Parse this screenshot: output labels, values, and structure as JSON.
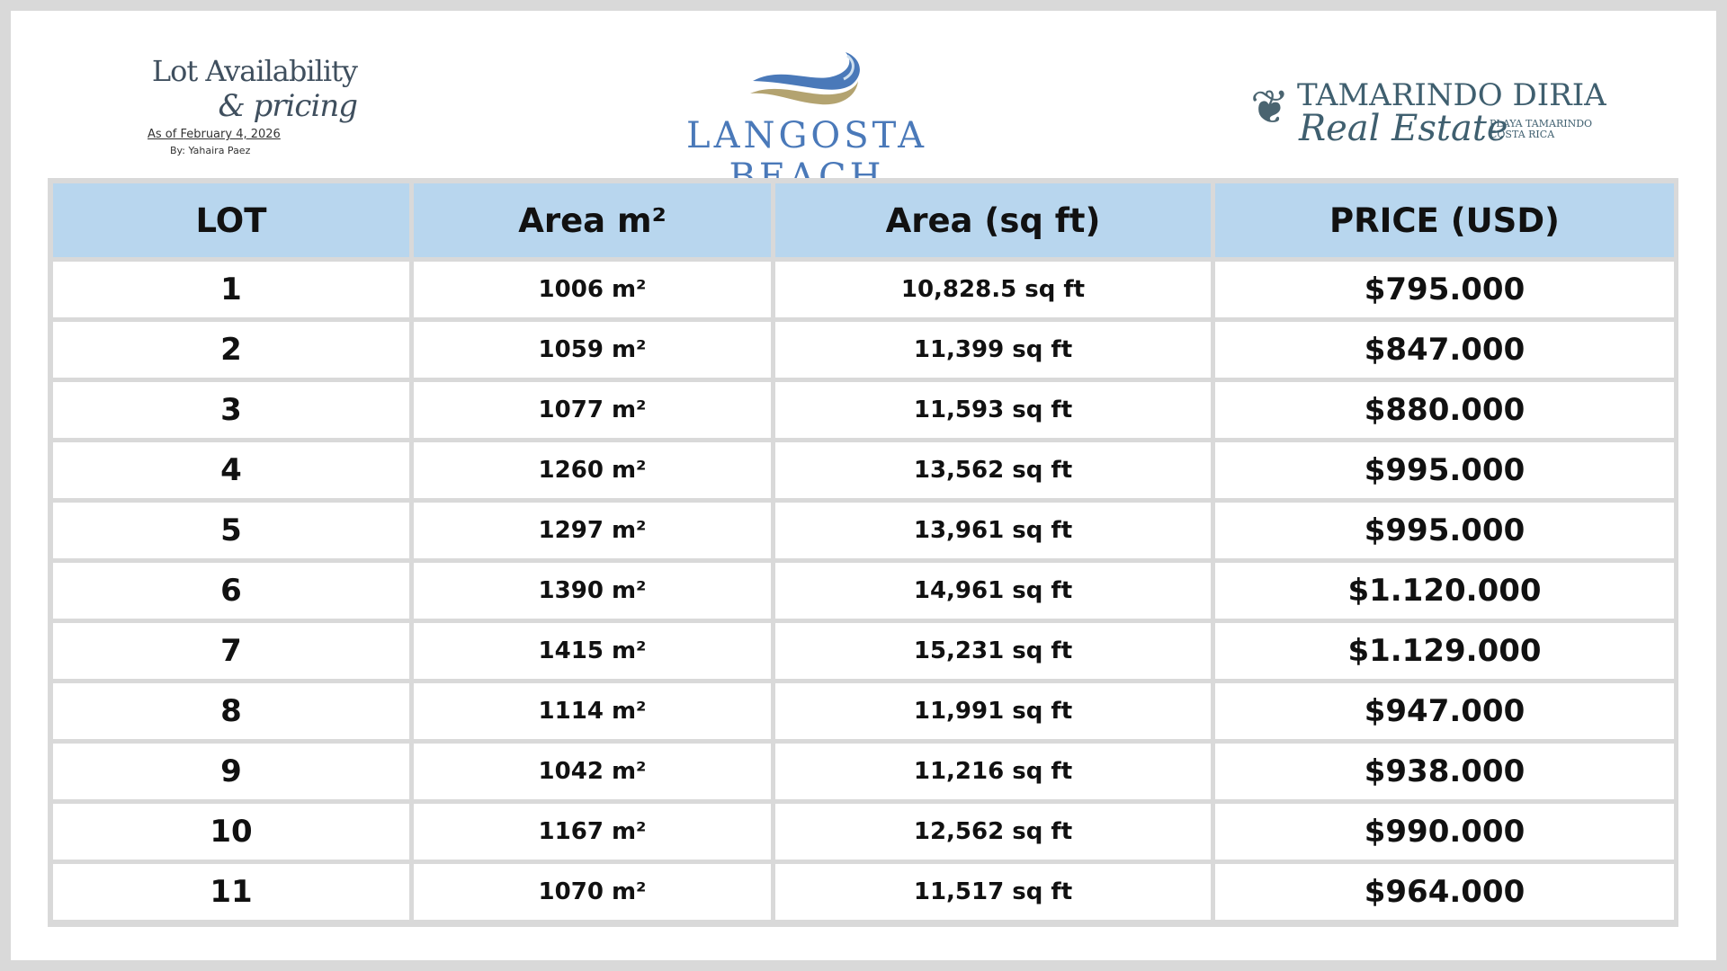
{
  "header": {
    "title_line1": "Lot Availability",
    "title_line2": "& pricing",
    "as_of": "As of February 4, 2026",
    "author": "By: Yahaira Paez",
    "brand_name": "LANGOSTA BEACH",
    "brand_colors": {
      "blue": "#4a79b9",
      "gold": "#b3a370"
    },
    "agency_line1": "TAMARINDO DIRIA",
    "agency_line2": "Real Estate",
    "agency_sub1": "PLAYA TAMARINDO",
    "agency_sub2": "COSTA RICA"
  },
  "table": {
    "columns": [
      "LOT",
      "Area m²",
      "Area (sq ft)",
      "PRICE (USD)"
    ],
    "header_color": "#b8d6ee",
    "rows": [
      {
        "lot": "1",
        "m2": "1006 m²",
        "sqft": "10,828.5 sq ft",
        "price": "$795.000"
      },
      {
        "lot": "2",
        "m2": "1059 m²",
        "sqft": "11,399 sq ft",
        "price": "$847.000"
      },
      {
        "lot": "3",
        "m2": "1077 m²",
        "sqft": "11,593 sq ft",
        "price": "$880.000"
      },
      {
        "lot": "4",
        "m2": "1260 m²",
        "sqft": "13,562 sq ft",
        "price": "$995.000"
      },
      {
        "lot": "5",
        "m2": "1297 m²",
        "sqft": "13,961 sq ft",
        "price": "$995.000"
      },
      {
        "lot": "6",
        "m2": "1390 m²",
        "sqft": "14,961 sq ft",
        "price": "$1.120.000"
      },
      {
        "lot": "7",
        "m2": "1415 m²",
        "sqft": "15,231 sq ft",
        "price": "$1.129.000"
      },
      {
        "lot": "8",
        "m2": "1114 m²",
        "sqft": "11,991 sq ft",
        "price": "$947.000"
      },
      {
        "lot": "9",
        "m2": "1042 m²",
        "sqft": "11,216 sq ft",
        "price": "$938.000"
      },
      {
        "lot": "10",
        "m2": "1167 m²",
        "sqft": "12,562 sq ft",
        "price": "$990.000"
      },
      {
        "lot": "11",
        "m2": "1070 m²",
        "sqft": "11,517 sq ft",
        "price": "$964.000"
      }
    ]
  }
}
